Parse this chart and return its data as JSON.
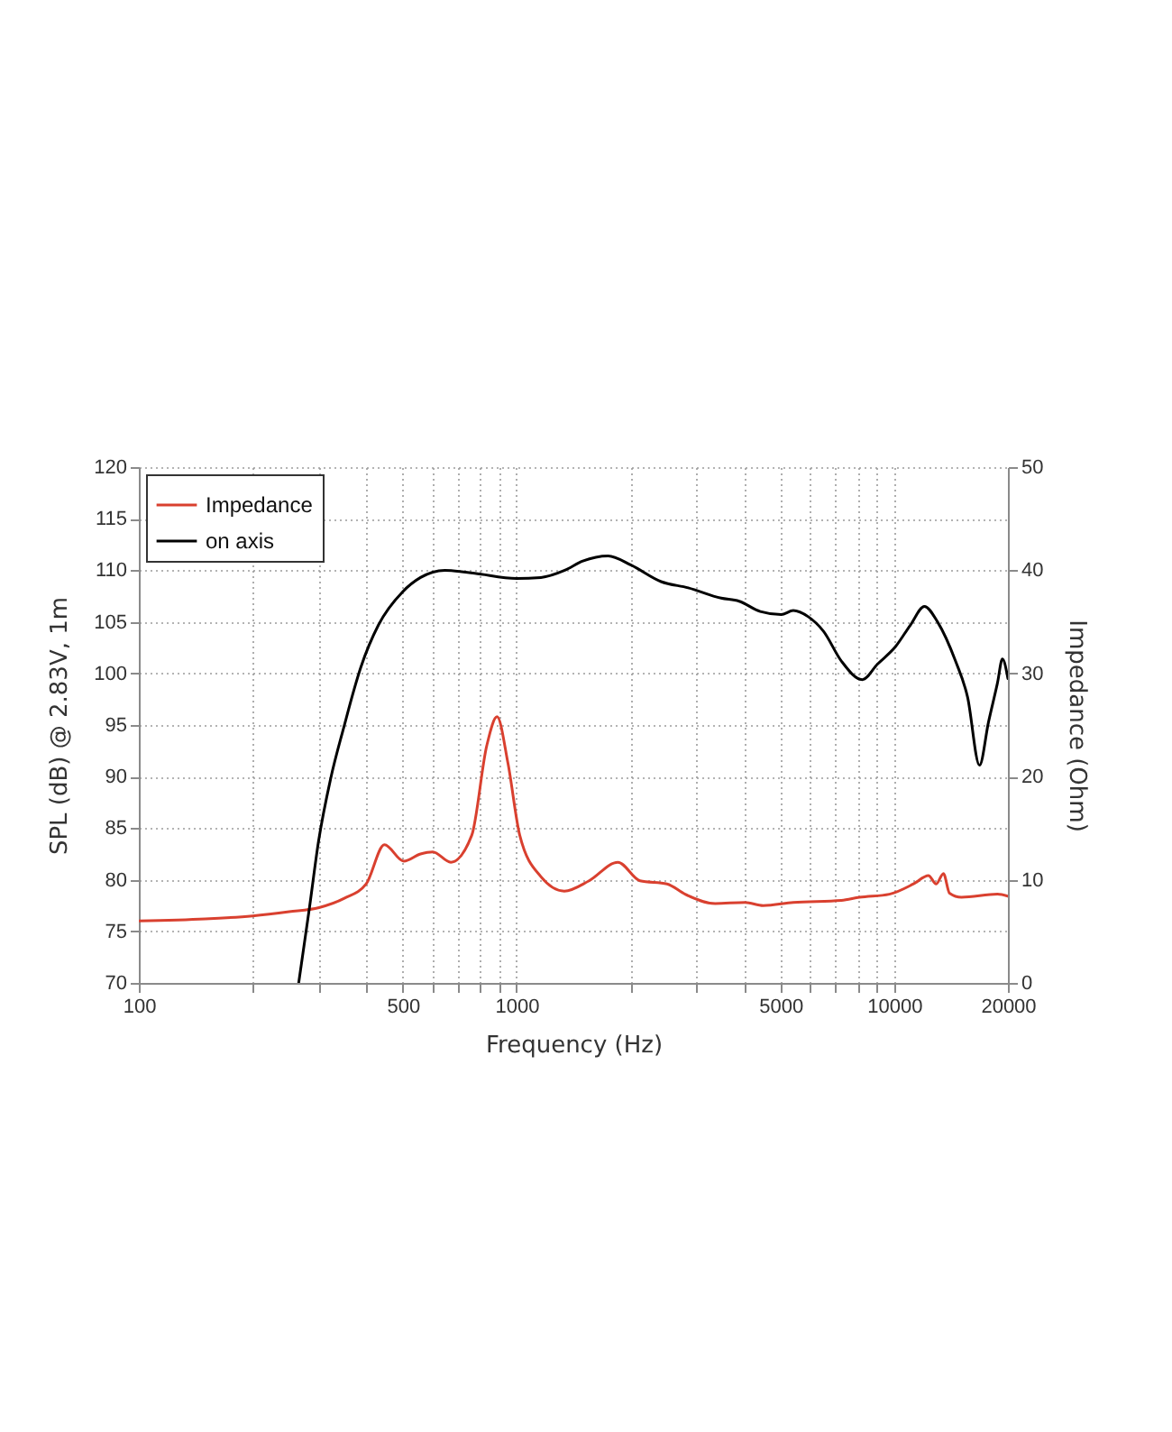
{
  "chart_data": {
    "type": "line",
    "xlabel": "Frequency (Hz)",
    "ylabel": "SPL (dB) @ 2.83V, 1m",
    "y2label": "Impedance (Ohm)",
    "log": "x",
    "grid": true,
    "legend": "top left",
    "line_style": "solid",
    "xlim": [
      100,
      20000
    ],
    "xticks": [
      100,
      {
        "value": 200,
        "label": null
      },
      {
        "value": 300,
        "label": null
      },
      {
        "value": 400,
        "label": null
      },
      500,
      {
        "value": 600,
        "label": null
      },
      {
        "value": 700,
        "label": null
      },
      {
        "value": 800,
        "label": null
      },
      {
        "value": 900,
        "label": null
      },
      1000,
      {
        "value": 2000,
        "label": null
      },
      {
        "value": 3000,
        "label": null
      },
      {
        "value": 4000,
        "label": null
      },
      5000,
      {
        "value": 6000,
        "label": null
      },
      {
        "value": 7000,
        "label": null
      },
      {
        "value": 8000,
        "label": null
      },
      {
        "value": 9000,
        "label": null
      },
      10000,
      20000
    ],
    "ylim": [
      70,
      120
    ],
    "yticks": [
      70,
      75,
      80,
      85,
      90,
      95,
      100,
      105,
      110,
      115,
      120
    ],
    "y2lim": [
      0,
      50
    ],
    "y2ticks": [
      0,
      10,
      20,
      30,
      40,
      50
    ],
    "series": [
      {
        "name": "Impedance",
        "color": "#d9402f",
        "axis": "y2",
        "x": [
          100,
          150,
          200,
          250,
          300,
          350,
          400,
          447,
          503,
          557,
          600,
          670,
          761,
          834,
          888,
          949,
          1020,
          1160,
          1338,
          1556,
          1855,
          2123,
          2503,
          2795,
          3357,
          4030,
          4498,
          5404,
          7246,
          8091,
          9710,
          11250,
          12320,
          12920,
          13500,
          14010,
          15070,
          18770,
          20000
        ],
        "values": [
          6.0,
          6.2,
          6.5,
          6.9,
          7.3,
          8.2,
          9.6,
          13.4,
          11.8,
          12.5,
          12.7,
          11.7,
          14.3,
          23.0,
          25.8,
          21.3,
          14.3,
          10.3,
          8.9,
          9.9,
          11.7,
          9.9,
          9.6,
          8.6,
          7.7,
          7.8,
          7.5,
          7.8,
          8.0,
          8.3,
          8.6,
          9.6,
          10.4,
          9.6,
          10.6,
          8.7,
          8.3,
          8.6,
          8.4
        ]
      },
      {
        "name": "on axis",
        "color": "#000000",
        "x": [
          265,
          283,
          299,
          322,
          349,
          387,
          431,
          499,
          557,
          646,
          775,
          1000,
          1160,
          1342,
          1498,
          1748,
          2010,
          2414,
          2848,
          3482,
          3886,
          4420,
          5019,
          5404,
          5920,
          6493,
          7246,
          8232,
          9029,
          10080,
          11040,
          12020,
          13020,
          14530,
          15640,
          16820,
          17770,
          18770,
          19340,
          20000
        ],
        "values": [
          70,
          77.3,
          83.7,
          89.8,
          94.8,
          100.6,
          104.7,
          107.9,
          109.3,
          110.0,
          109.7,
          109.2,
          109.3,
          110.0,
          110.9,
          111.4,
          110.5,
          108.9,
          108.3,
          107.3,
          107.0,
          106.0,
          105.7,
          106.1,
          105.5,
          104.1,
          101.2,
          99.4,
          100.9,
          102.6,
          104.7,
          106.5,
          105.0,
          101.2,
          97.7,
          91.1,
          95.3,
          99.1,
          101.4,
          99.5
        ]
      }
    ]
  }
}
